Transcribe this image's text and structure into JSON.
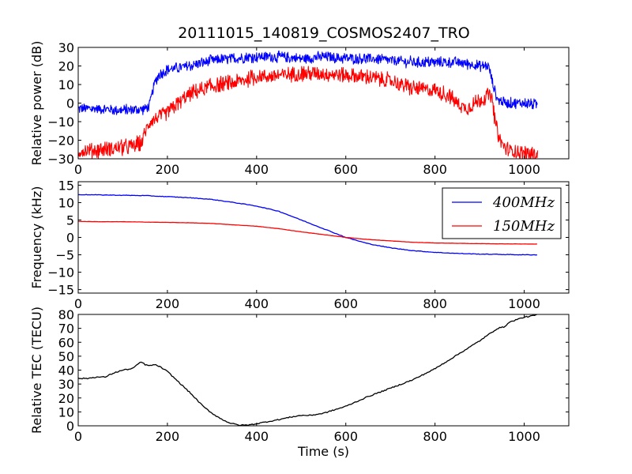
{
  "figure": {
    "title": "20111015_140819_COSMOS2407_TRO",
    "colors": {
      "blue": "#0000ff",
      "red": "#ff0000",
      "black": "#000000"
    }
  },
  "chart_data": [
    {
      "type": "line",
      "ylabel": "Relative power (dB)",
      "xlabel": "",
      "xlim": [
        0,
        1100
      ],
      "ylim": [
        -30,
        30
      ],
      "xticks": [
        0,
        200,
        400,
        600,
        800,
        1000
      ],
      "yticks": [
        -30,
        -20,
        -10,
        0,
        10,
        20,
        30
      ],
      "grid": false,
      "series": [
        {
          "color": "#0000ff",
          "noise": 3.5,
          "points": [
            [
              0,
              -3
            ],
            [
              50,
              -3
            ],
            [
              100,
              -4
            ],
            [
              150,
              -3
            ],
            [
              160,
              -1
            ],
            [
              170,
              10
            ],
            [
              180,
              15
            ],
            [
              200,
              18
            ],
            [
              250,
              20
            ],
            [
              300,
              23
            ],
            [
              350,
              24
            ],
            [
              400,
              25
            ],
            [
              450,
              25
            ],
            [
              500,
              24
            ],
            [
              550,
              25
            ],
            [
              600,
              24
            ],
            [
              650,
              24
            ],
            [
              700,
              23
            ],
            [
              750,
              22
            ],
            [
              800,
              22
            ],
            [
              850,
              22
            ],
            [
              880,
              21
            ],
            [
              900,
              20
            ],
            [
              920,
              20
            ],
            [
              930,
              10
            ],
            [
              940,
              2
            ],
            [
              960,
              0
            ],
            [
              1000,
              0
            ],
            [
              1030,
              -1
            ]
          ]
        },
        {
          "color": "#ff0000",
          "noise": 5,
          "points": [
            [
              0,
              -26
            ],
            [
              50,
              -25
            ],
            [
              100,
              -24
            ],
            [
              140,
              -22
            ],
            [
              160,
              -10
            ],
            [
              200,
              -5
            ],
            [
              250,
              5
            ],
            [
              300,
              9
            ],
            [
              350,
              11
            ],
            [
              400,
              14
            ],
            [
              450,
              15
            ],
            [
              500,
              16
            ],
            [
              550,
              16
            ],
            [
              600,
              15
            ],
            [
              650,
              14
            ],
            [
              700,
              12
            ],
            [
              750,
              8
            ],
            [
              800,
              7
            ],
            [
              830,
              4
            ],
            [
              850,
              0
            ],
            [
              870,
              -3
            ],
            [
              890,
              0
            ],
            [
              910,
              3
            ],
            [
              925,
              5
            ],
            [
              935,
              -10
            ],
            [
              945,
              -20
            ],
            [
              960,
              -25
            ],
            [
              1000,
              -27
            ],
            [
              1030,
              -28
            ]
          ]
        }
      ]
    },
    {
      "type": "line",
      "ylabel": "Frequency (kHz)",
      "xlabel": "",
      "xlim": [
        0,
        1100
      ],
      "ylim": [
        -16,
        16
      ],
      "xticks": [
        0,
        200,
        400,
        600,
        800,
        1000
      ],
      "yticks": [
        -15,
        -10,
        -5,
        0,
        5,
        10,
        15
      ],
      "grid": false,
      "legend": "upper right",
      "series": [
        {
          "name": "400MHz",
          "color": "#0000ff",
          "noise": 0.08,
          "points": [
            [
              0,
              12.3
            ],
            [
              50,
              12.2
            ],
            [
              100,
              12.1
            ],
            [
              150,
              12.0
            ],
            [
              200,
              11.7
            ],
            [
              250,
              11.4
            ],
            [
              300,
              10.9
            ],
            [
              350,
              10.0
            ],
            [
              400,
              9.0
            ],
            [
              450,
              7.5
            ],
            [
              500,
              5.0
            ],
            [
              550,
              2.5
            ],
            [
              600,
              0
            ],
            [
              650,
              -1.8
            ],
            [
              700,
              -3.0
            ],
            [
              750,
              -3.8
            ],
            [
              800,
              -4.3
            ],
            [
              850,
              -4.6
            ],
            [
              900,
              -4.8
            ],
            [
              950,
              -4.9
            ],
            [
              1000,
              -5.0
            ],
            [
              1030,
              -5.0
            ]
          ]
        },
        {
          "name": "150MHz",
          "color": "#ff0000",
          "noise": 0.03,
          "points": [
            [
              0,
              4.6
            ],
            [
              50,
              4.5
            ],
            [
              100,
              4.5
            ],
            [
              150,
              4.4
            ],
            [
              200,
              4.3
            ],
            [
              250,
              4.2
            ],
            [
              300,
              4.0
            ],
            [
              350,
              3.6
            ],
            [
              400,
              3.2
            ],
            [
              450,
              2.5
            ],
            [
              500,
              1.6
            ],
            [
              550,
              0.8
            ],
            [
              600,
              0
            ],
            [
              650,
              -0.6
            ],
            [
              700,
              -1.0
            ],
            [
              750,
              -1.4
            ],
            [
              800,
              -1.6
            ],
            [
              850,
              -1.7
            ],
            [
              900,
              -1.8
            ],
            [
              950,
              -1.85
            ],
            [
              1000,
              -1.9
            ],
            [
              1030,
              -1.9
            ]
          ]
        }
      ]
    },
    {
      "type": "line",
      "ylabel": "Relative TEC (TECU)",
      "xlabel": "Time (s)",
      "xlim": [
        0,
        1100
      ],
      "ylim": [
        0,
        80
      ],
      "xticks": [
        0,
        200,
        400,
        600,
        800,
        1000
      ],
      "yticks": [
        0,
        10,
        20,
        30,
        40,
        50,
        60,
        70,
        80
      ],
      "grid": false,
      "series": [
        {
          "color": "#000000",
          "noise": 0.4,
          "points": [
            [
              0,
              34
            ],
            [
              20,
              34
            ],
            [
              40,
              35
            ],
            [
              60,
              35
            ],
            [
              80,
              38
            ],
            [
              100,
              40
            ],
            [
              120,
              41
            ],
            [
              130,
              43
            ],
            [
              140,
              46
            ],
            [
              150,
              44
            ],
            [
              160,
              43
            ],
            [
              170,
              44
            ],
            [
              180,
              43
            ],
            [
              200,
              39
            ],
            [
              220,
              33
            ],
            [
              250,
              24
            ],
            [
              280,
              14
            ],
            [
              300,
              9
            ],
            [
              320,
              5
            ],
            [
              340,
              2
            ],
            [
              360,
              0.5
            ],
            [
              380,
              0.5
            ],
            [
              400,
              1.5
            ],
            [
              450,
              4.5
            ],
            [
              480,
              6.5
            ],
            [
              500,
              7.5
            ],
            [
              520,
              7.5
            ],
            [
              550,
              9
            ],
            [
              600,
              14
            ],
            [
              650,
              21
            ],
            [
              700,
              27
            ],
            [
              750,
              33
            ],
            [
              800,
              41
            ],
            [
              850,
              51
            ],
            [
              900,
              61
            ],
            [
              940,
              70
            ],
            [
              955,
              71
            ],
            [
              965,
              74
            ],
            [
              980,
              76
            ],
            [
              1000,
              78
            ],
            [
              1020,
              79
            ],
            [
              1030,
              80
            ]
          ]
        }
      ]
    }
  ]
}
